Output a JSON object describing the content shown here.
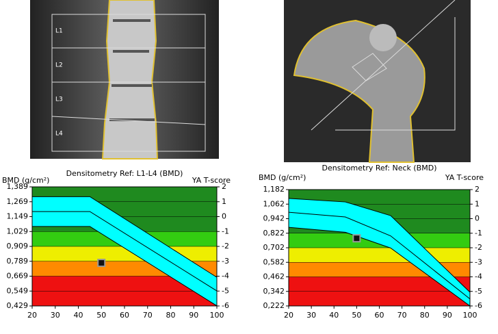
{
  "images": {
    "spine_labels": [
      "L1",
      "L2",
      "L3",
      "L4"
    ]
  },
  "chart_data": [
    {
      "type": "line",
      "title": "Densitometry Ref: L1-L4 (BMD)",
      "y_label": "BMD (g/cm²)",
      "y2_label": "YA T-score",
      "xlim": [
        20,
        100
      ],
      "xticks": [
        20,
        30,
        40,
        50,
        60,
        70,
        80,
        90,
        100
      ],
      "ylim": [
        0.429,
        1.389
      ],
      "yticks": [
        {
          "value": 0.429,
          "label": "0,429"
        },
        {
          "value": 0.549,
          "label": "0,549"
        },
        {
          "value": 0.669,
          "label": "0,669"
        },
        {
          "value": 0.789,
          "label": "0,789"
        },
        {
          "value": 0.909,
          "label": "0,909"
        },
        {
          "value": 1.029,
          "label": "1,029"
        },
        {
          "value": 1.149,
          "label": "1,149"
        },
        {
          "value": 1.269,
          "label": "1,269"
        },
        {
          "value": 1.389,
          "label": "1,389"
        }
      ],
      "y2lim": [
        -6,
        2
      ],
      "y2ticks": [
        -6,
        -5,
        -4,
        -3,
        -2,
        -1,
        0,
        1,
        2
      ],
      "bands": [
        {
          "from": -1,
          "to": 2,
          "color": "#1f8a1f"
        },
        {
          "from": -2,
          "to": -1,
          "color": "#33cc11"
        },
        {
          "from": -3,
          "to": -2,
          "color": "#eeee00"
        },
        {
          "from": -4,
          "to": -3,
          "color": "#ff8a00"
        },
        {
          "from": -6,
          "to": -4,
          "color": "#ee1111"
        }
      ],
      "reference_color": "#00ffff",
      "x": [
        20,
        45,
        100
      ],
      "series": [
        {
          "values": [
            1.31,
            1.31,
            0.66
          ]
        },
        {
          "values": [
            1.19,
            1.19,
            0.55
          ]
        },
        {
          "values": [
            1.07,
            1.07,
            0.43
          ]
        }
      ],
      "point": {
        "x": 50,
        "y": 0.776
      }
    },
    {
      "type": "line",
      "title": "Densitometry Ref: Neck (BMD)",
      "y_label": "BMD (g/cm²)",
      "y2_label": "YA T-score",
      "xlim": [
        20,
        100
      ],
      "xticks": [
        20,
        30,
        40,
        50,
        60,
        70,
        80,
        90,
        100
      ],
      "ylim": [
        0.222,
        1.182
      ],
      "yticks": [
        {
          "value": 0.222,
          "label": "0,222"
        },
        {
          "value": 0.342,
          "label": "0,342"
        },
        {
          "value": 0.462,
          "label": "0,462"
        },
        {
          "value": 0.582,
          "label": "0,582"
        },
        {
          "value": 0.702,
          "label": "0,702"
        },
        {
          "value": 0.822,
          "label": "0,822"
        },
        {
          "value": 0.942,
          "label": "0,942"
        },
        {
          "value": 1.062,
          "label": "1,062"
        },
        {
          "value": 1.182,
          "label": "1,182"
        }
      ],
      "y2lim": [
        -6,
        2
      ],
      "y2ticks": [
        -6,
        -5,
        -4,
        -3,
        -2,
        -1,
        0,
        1,
        2
      ],
      "bands": [
        {
          "from": -1,
          "to": 2,
          "color": "#1f8a1f"
        },
        {
          "from": -2,
          "to": -1,
          "color": "#33cc11"
        },
        {
          "from": -3,
          "to": -2,
          "color": "#eeee00"
        },
        {
          "from": -4,
          "to": -3,
          "color": "#ff8a00"
        },
        {
          "from": -6,
          "to": -4,
          "color": "#ee1111"
        }
      ],
      "reference_color": "#00ffff",
      "x": [
        20,
        45,
        65,
        100
      ],
      "series": [
        {
          "values": [
            1.109,
            1.08,
            0.967,
            0.335
          ]
        },
        {
          "values": [
            0.995,
            0.956,
            0.8,
            0.28
          ]
        },
        {
          "values": [
            0.871,
            0.83,
            0.7,
            0.222
          ]
        }
      ],
      "point": {
        "x": 50,
        "y": 0.78
      }
    }
  ]
}
